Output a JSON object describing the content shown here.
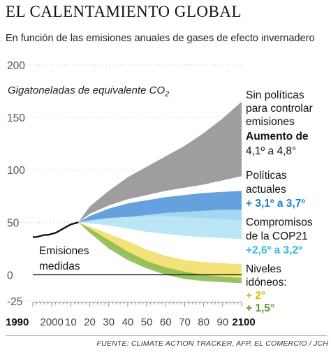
{
  "header": {
    "title": "EL CALENTAMIENTO GLOBAL",
    "subtitle": "En función de las emisiones anuales de gases de efecto invernadero"
  },
  "source": "FUENTE: CLIMATE ACTION TRACKER, AFP, EL COMERCIO / JCH",
  "colors": {
    "no_policy": "#9e9e9e",
    "current_policy": "#4a90d6",
    "current_policy_light": "#7eb6e6",
    "cop21": "#aee2f3",
    "cop21_light": "#c9ecf7",
    "target_2": "#f2de6a",
    "target_15": "#86b94a",
    "measured": "#111111",
    "zero_line": "#111111",
    "grid": "#c8c8c8"
  },
  "chart_data": {
    "type": "area",
    "ylabel_main": "Gigatoneladas de equivalente CO",
    "ylabel_sub": "2",
    "xlim": [
      1990,
      2100
    ],
    "ylim": [
      -25,
      200
    ],
    "yticks": [
      200,
      150,
      100,
      50,
      0,
      -25
    ],
    "ytick_labels": [
      "200",
      "150",
      "100",
      "50",
      "0",
      "-25"
    ],
    "xticks": [
      1990,
      2000,
      2010,
      2020,
      2030,
      2040,
      2050,
      2060,
      2070,
      2080,
      2090,
      2100
    ],
    "xtick_labels": [
      "1990",
      "2000",
      "10",
      "20",
      "30",
      "40",
      "50",
      "60",
      "70",
      "80",
      "90",
      "2100"
    ],
    "measured": {
      "name": "Emisiones medidas",
      "x": [
        1990,
        1992,
        1994,
        1996,
        1998,
        2000,
        2002,
        2004,
        2006,
        2008,
        2010,
        2012,
        2014
      ],
      "y": [
        36,
        36,
        37,
        38,
        38,
        39,
        40,
        42,
        44,
        46,
        48,
        49,
        50
      ]
    },
    "bands": [
      {
        "id": "no_policy",
        "x": [
          2014,
          2020,
          2030,
          2040,
          2050,
          2060,
          2070,
          2080,
          2090,
          2100
        ],
        "lower": [
          50,
          58,
          66,
          72,
          76,
          80,
          83,
          86,
          90,
          94
        ],
        "upper": [
          50,
          65,
          80,
          93,
          103,
          113,
          123,
          135,
          149,
          165
        ]
      },
      {
        "id": "current_policy",
        "x": [
          2014,
          2020,
          2030,
          2040,
          2050,
          2060,
          2070,
          2080,
          2090,
          2100
        ],
        "lower": [
          50,
          51,
          54,
          55,
          56,
          56,
          55,
          54,
          53,
          52
        ],
        "upper": [
          50,
          56,
          63,
          68,
          71,
          74,
          76,
          78,
          79,
          80
        ]
      },
      {
        "id": "cop21",
        "x": [
          2014,
          2020,
          2030,
          2040,
          2050,
          2060,
          2070,
          2080,
          2090,
          2100
        ],
        "lower": [
          50,
          49,
          47,
          44,
          41,
          39,
          37,
          36,
          35,
          34
        ],
        "upper": [
          50,
          52,
          54,
          55,
          57,
          59,
          60,
          61,
          62,
          62
        ]
      },
      {
        "id": "target_2",
        "x": [
          2014,
          2020,
          2030,
          2040,
          2050,
          2060,
          2070,
          2080,
          2090,
          2100
        ],
        "lower": [
          50,
          42,
          30,
          18,
          9,
          3,
          0,
          -1,
          -2,
          -3
        ],
        "upper": [
          50,
          46,
          39,
          32,
          24,
          18,
          14,
          12,
          11,
          10
        ]
      },
      {
        "id": "target_15",
        "x": [
          2014,
          2020,
          2030,
          2040,
          2050,
          2060,
          2070,
          2080,
          2090,
          2100
        ],
        "lower": [
          50,
          40,
          25,
          14,
          6,
          0,
          -4,
          -6,
          -7,
          -8
        ],
        "upper": [
          50,
          44,
          33,
          22,
          13,
          7,
          3,
          0,
          -2,
          -3
        ]
      }
    ],
    "annotations": {
      "no_policy": [
        "Sin políticas",
        "para controlar",
        "emisiones"
      ],
      "no_policy_rise": [
        "Aumento de",
        "4,1º a 4,8°"
      ],
      "current": [
        "Políticas",
        "actuales"
      ],
      "current_rise": "+ 3,1º a 3,7º",
      "cop21": [
        "Compromisos",
        "de la COP21"
      ],
      "cop21_rise": "+2,6º a 3,2º",
      "ideal": [
        "Niveles",
        "idóneos:"
      ],
      "ideal_2": "+ 2°",
      "ideal_15": "+ 1,5°",
      "measured": [
        "Emisiones",
        "medidas"
      ]
    }
  }
}
